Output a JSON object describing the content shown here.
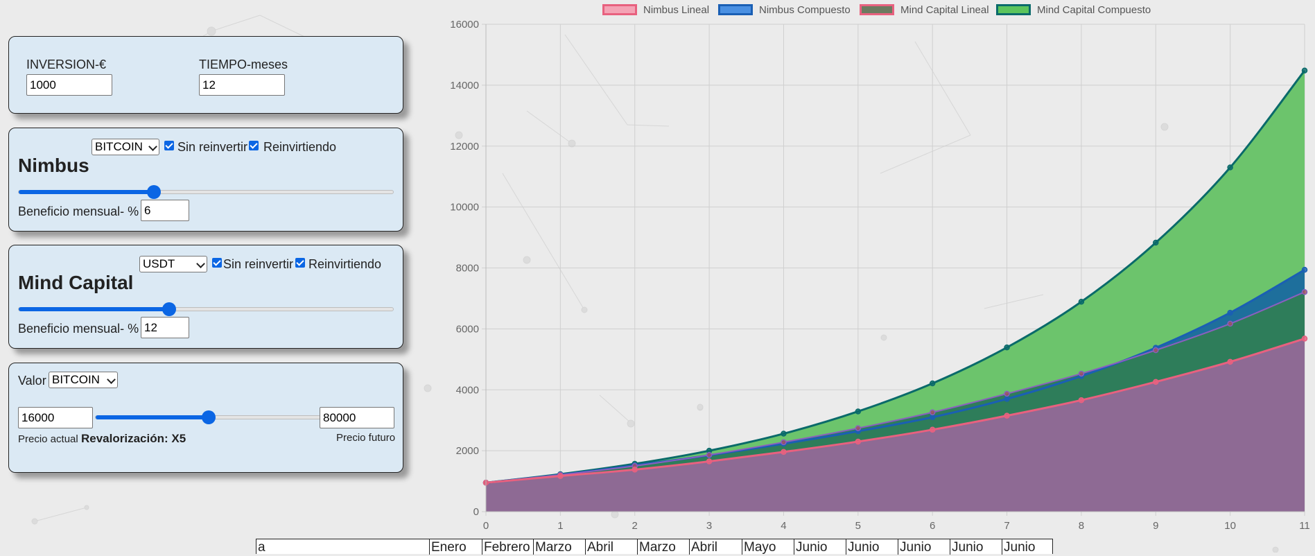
{
  "inversion": {
    "label": "INVERSION-€",
    "value": "1000"
  },
  "tiempo": {
    "label": "TIEMPO-meses",
    "value": "12"
  },
  "nimbus": {
    "title": "Nimbus",
    "currency": "BITCOIN",
    "sin_reinvertir_label": "Sin reinvertir",
    "reinvirtiendo_label": "Reinvirtiendo",
    "sin_reinvertir_checked": true,
    "reinvirtiendo_checked": true,
    "slider_fraction": 0.36,
    "beneficio_label": "Beneficio mensual- %",
    "beneficio_value": "6"
  },
  "mind_capital": {
    "title": "Mind Capital",
    "currency": "USDT",
    "sin_reinvertir_label": "Sin reinvertir",
    "reinvirtiendo_label": "Reinvirtiendo",
    "sin_reinvertir_checked": true,
    "reinvirtiendo_checked": true,
    "slider_fraction": 0.4,
    "beneficio_label": "Beneficio mensual- %",
    "beneficio_value": "12"
  },
  "valor": {
    "label": "Valor",
    "currency": "BITCOIN",
    "precio_actual_value": "16000",
    "precio_futuro_value": "80000",
    "slider_fraction": 0.5,
    "precio_actual_label": "Precio actual",
    "revalorizacion_label": "Revalorización: X5",
    "precio_futuro_label": "Precio futuro"
  },
  "table": {
    "first_cell": "a",
    "months": [
      "Enero",
      "Febrero",
      "Marzo",
      "Abril",
      "Marzo",
      "Abril",
      "Mayo",
      "Junio",
      "Junio",
      "Junio",
      "Junio",
      "Junio"
    ]
  },
  "chart_data": {
    "type": "area",
    "x": [
      0,
      1,
      2,
      3,
      4,
      5,
      6,
      7,
      8,
      9,
      10,
      11
    ],
    "ylim": [
      0,
      16000
    ],
    "yticks": [
      0,
      2000,
      4000,
      6000,
      8000,
      10000,
      12000,
      14000,
      16000
    ],
    "grid": true,
    "legend_position": "top",
    "series": [
      {
        "name": "Nimbus Lineal",
        "color": "#e8617f",
        "fill": "#f4a3b5",
        "values": [
          950,
          1170,
          1380,
          1650,
          1960,
          2300,
          2690,
          3150,
          3660,
          4260,
          4920,
          5680
        ]
      },
      {
        "name": "Nimbus Compuesto",
        "color": "#1a5fb4",
        "fill": "#4a90e2",
        "values": [
          950,
          1210,
          1520,
          1850,
          2230,
          2640,
          3100,
          3700,
          4450,
          5380,
          6530,
          7940
        ]
      },
      {
        "name": "Mind Capital Lineal",
        "color": "#e8617f",
        "fill": "#6c7a60",
        "values": [
          950,
          1210,
          1500,
          1860,
          2280,
          2740,
          3260,
          3870,
          4530,
          5300,
          6170,
          7210
        ]
      },
      {
        "name": "Mind Capital Compuesto",
        "color": "#0a6a6a",
        "fill": "#5cc45c",
        "values": [
          950,
          1230,
          1570,
          2000,
          2560,
          3290,
          4210,
          5390,
          6890,
          8830,
          11300,
          14480
        ]
      }
    ]
  }
}
